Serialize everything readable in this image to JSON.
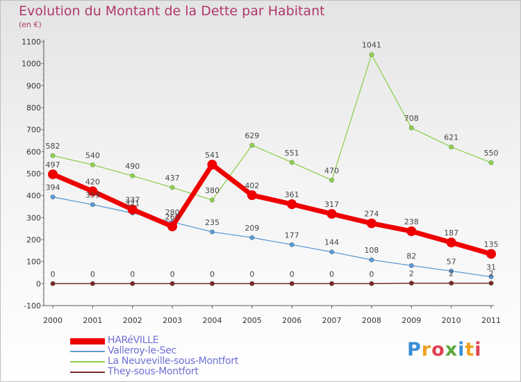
{
  "title": "Evolution du Montant de la Dette par Habitant",
  "subtitle": "(en €)",
  "brand": {
    "text": "Proxiti",
    "letter_colors": [
      "#3a8fd6",
      "#f0a020",
      "#e04050",
      "#5aa83a",
      "#3a8fd6",
      "#f0a020",
      "#e04050"
    ]
  },
  "chart_data": {
    "type": "line",
    "title": "Evolution du Montant de la Dette par Habitant",
    "ylabel": "(en €)",
    "xlabel": "",
    "x": [
      "2000",
      "2001",
      "2002",
      "2003",
      "2004",
      "2005",
      "2006",
      "2007",
      "2008",
      "2009",
      "2010",
      "2011"
    ],
    "ylim": [
      -100,
      1100
    ],
    "yticks": [
      "-100",
      "0",
      "100",
      "200",
      "300",
      "400",
      "500",
      "600",
      "700",
      "800",
      "900",
      "1000",
      "1100"
    ],
    "grid": false,
    "legend_position": "bottom-left",
    "series": [
      {
        "name": "HARéVILLE",
        "color": "#ee0000",
        "values": [
          497,
          420,
          337,
          260,
          541,
          402,
          361,
          317,
          274,
          238,
          187,
          135
        ],
        "labels": [
          "497",
          "420",
          "337",
          "260",
          "541",
          "402",
          "361",
          "317",
          "274",
          "238",
          "187",
          "135"
        ]
      },
      {
        "name": "Valleroy-le-Sec",
        "color": "#5b9bd5",
        "values": [
          394,
          359,
          321,
          280,
          235,
          209,
          177,
          144,
          108,
          82,
          57,
          31
        ],
        "labels": [
          "394",
          "359",
          "321",
          "280",
          "235",
          "209",
          "177",
          "144",
          "108",
          "82",
          "57",
          "31"
        ]
      },
      {
        "name": "La Neuveville-sous-Montfort",
        "color": "#8fd14f",
        "values": [
          582,
          540,
          490,
          437,
          380,
          629,
          551,
          470,
          1041,
          708,
          621,
          550
        ],
        "labels": [
          "582",
          "540",
          "490",
          "437",
          "380",
          "629",
          "551",
          "470",
          "1041",
          "708",
          "621",
          "550"
        ]
      },
      {
        "name": "They-sous-Montfort",
        "color": "#7a2a2a",
        "values": [
          0,
          0,
          0,
          0,
          0,
          0,
          0,
          0,
          0,
          2,
          2,
          2
        ],
        "labels": [
          "0",
          "0",
          "0",
          "0",
          "0",
          "0",
          "0",
          "0",
          "0",
          "2",
          "2",
          "2"
        ]
      }
    ]
  }
}
